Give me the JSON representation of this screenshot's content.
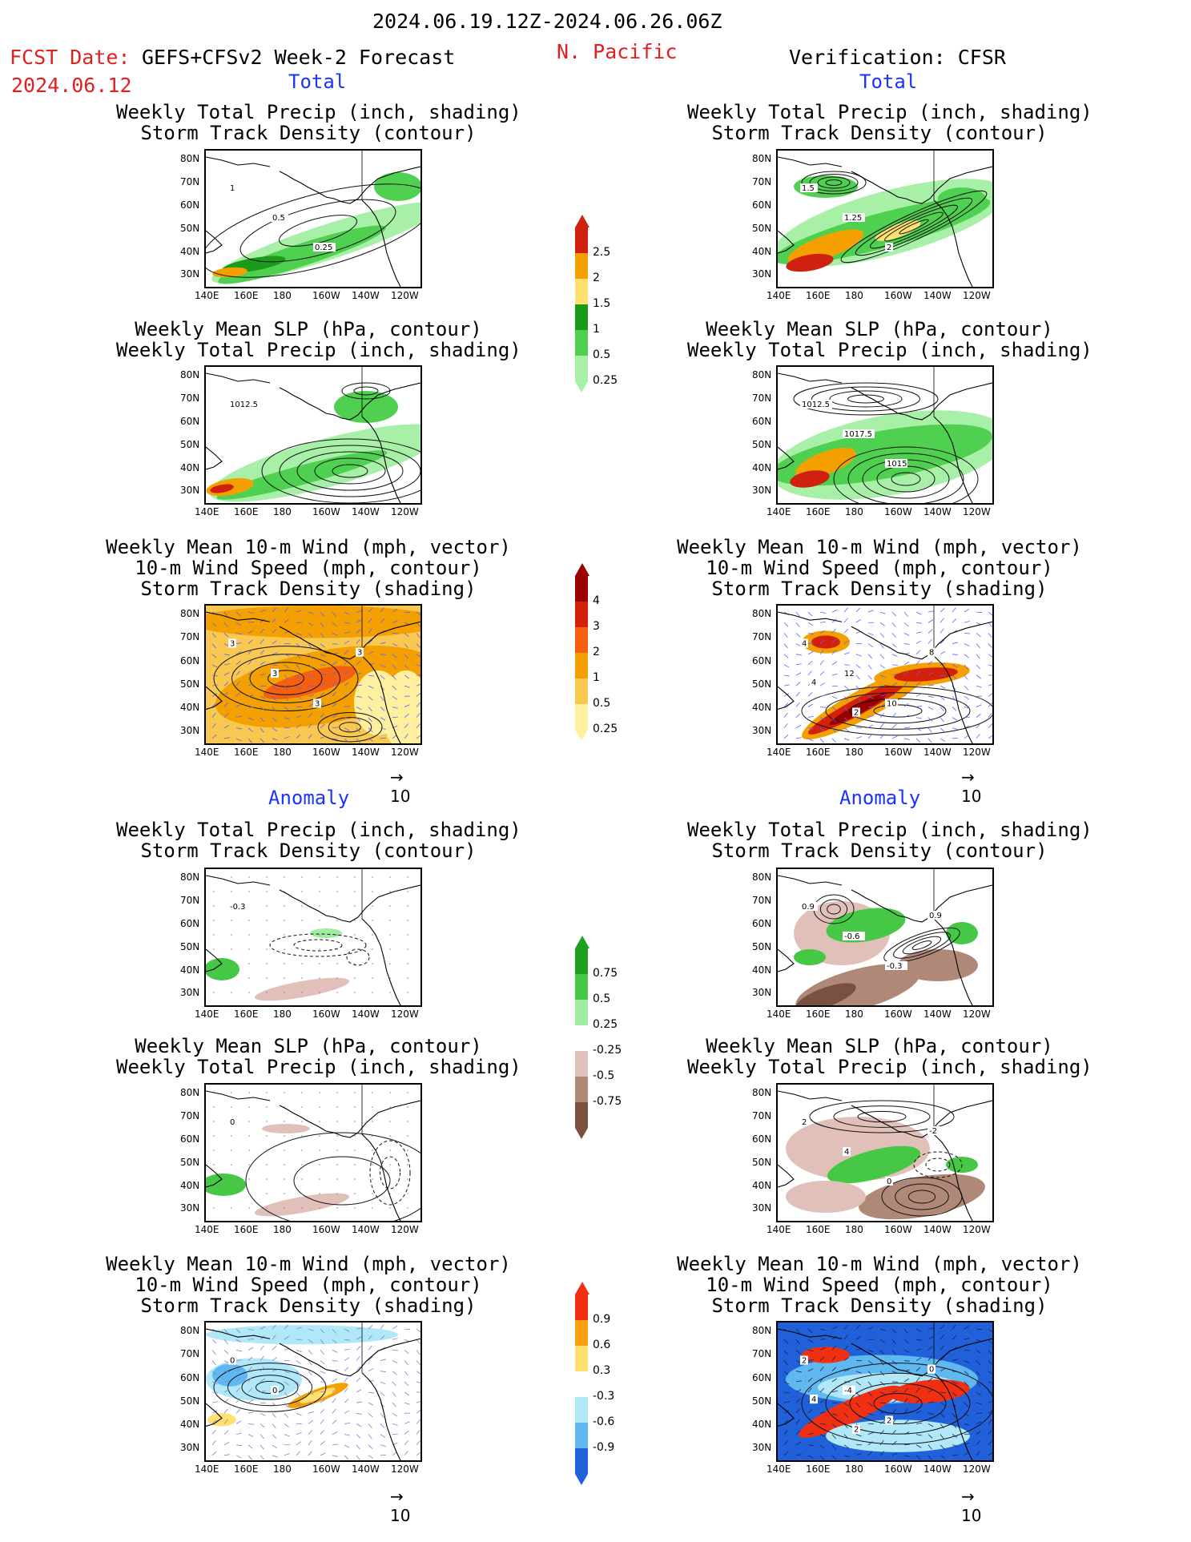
{
  "header": {
    "date_range": "2024.06.19.12Z-2024.06.26.06Z",
    "fcst_label": "FCST Date:",
    "model": "GEFS+CFSv2 Week-2 Forecast",
    "fcst_date": "2024.06.12",
    "region": "N. Pacific",
    "verification": "Verification: CFSR"
  },
  "sections": {
    "total": "Total",
    "anomaly": "Anomaly"
  },
  "titles": {
    "precip_track": "Weekly Total Precip (inch, shading)\nStorm Track Density (contour)",
    "slp_precip": "Weekly Mean SLP (hPa, contour)\nWeekly Total Precip (inch, shading)",
    "wind_track": "Weekly Mean 10-m Wind (mph, vector)\n10-m Wind Speed (mph, contour)\nStorm Track Density (shading)"
  },
  "axes": {
    "lat": [
      "80N",
      "70N",
      "60N",
      "50N",
      "40N",
      "30N"
    ],
    "lon": [
      "140E",
      "160E",
      "180",
      "160W",
      "140W",
      "120W"
    ]
  },
  "vector_ref": "10",
  "map_labels": {
    "fc_precip": [
      "1",
      "0.5",
      "0.25"
    ],
    "obs_precip": [
      "1.5",
      "1.25",
      "2"
    ],
    "fc_slp": [
      "1012.5"
    ],
    "obs_slp": [
      "1012.5",
      "1017.5",
      "1015"
    ],
    "fc_wind": [
      "3",
      "3",
      "3",
      "3"
    ],
    "obs_wind": [
      "4",
      "12",
      "10",
      "8",
      "4",
      "2"
    ],
    "fc_anom_precip": [
      "-0.3"
    ],
    "obs_anom_precip": [
      "0.9",
      "-0.6",
      "-0.3",
      "0.9"
    ],
    "fc_anom_slp": [
      "0"
    ],
    "obs_anom_slp": [
      "2",
      "4",
      "0",
      "-2"
    ],
    "fc_anom_wind": [
      "0",
      "0"
    ],
    "obs_anom_wind": [
      "2",
      "-4",
      "2",
      "0",
      "4",
      "2"
    ]
  },
  "colorbars": {
    "precip_total": {
      "labels": [
        "2.5",
        "2",
        "1.5",
        "1",
        "0.5",
        "0.25"
      ],
      "colors": [
        "#d02010",
        "#f4a000",
        "#ffe070",
        "#1b9a1b",
        "#50d050",
        "#a8f0a8"
      ]
    },
    "track_total": {
      "labels": [
        "4",
        "3",
        "2",
        "1",
        "0.5",
        "0.25"
      ],
      "colors": [
        "#9a0000",
        "#d42008",
        "#f46010",
        "#f4a000",
        "#f8c850",
        "#fff0a0"
      ]
    },
    "precip_anom": {
      "labels": [
        "0.75",
        "0.5",
        "0.25",
        "-0.25",
        "-0.5",
        "-0.75"
      ],
      "colors": [
        "#1ea01e",
        "#46c846",
        "#a0eca0",
        "#ffffff",
        "#e0c0b8",
        "#b08878",
        "#7a5040"
      ]
    },
    "track_anom": {
      "labels": [
        "0.9",
        "0.6",
        "0.3",
        "-0.3",
        "-0.6",
        "-0.9"
      ],
      "colors": [
        "#f03010",
        "#f8a010",
        "#ffe070",
        "#ffffff",
        "#b0e8f8",
        "#60b8f0",
        "#2060d8"
      ]
    }
  }
}
